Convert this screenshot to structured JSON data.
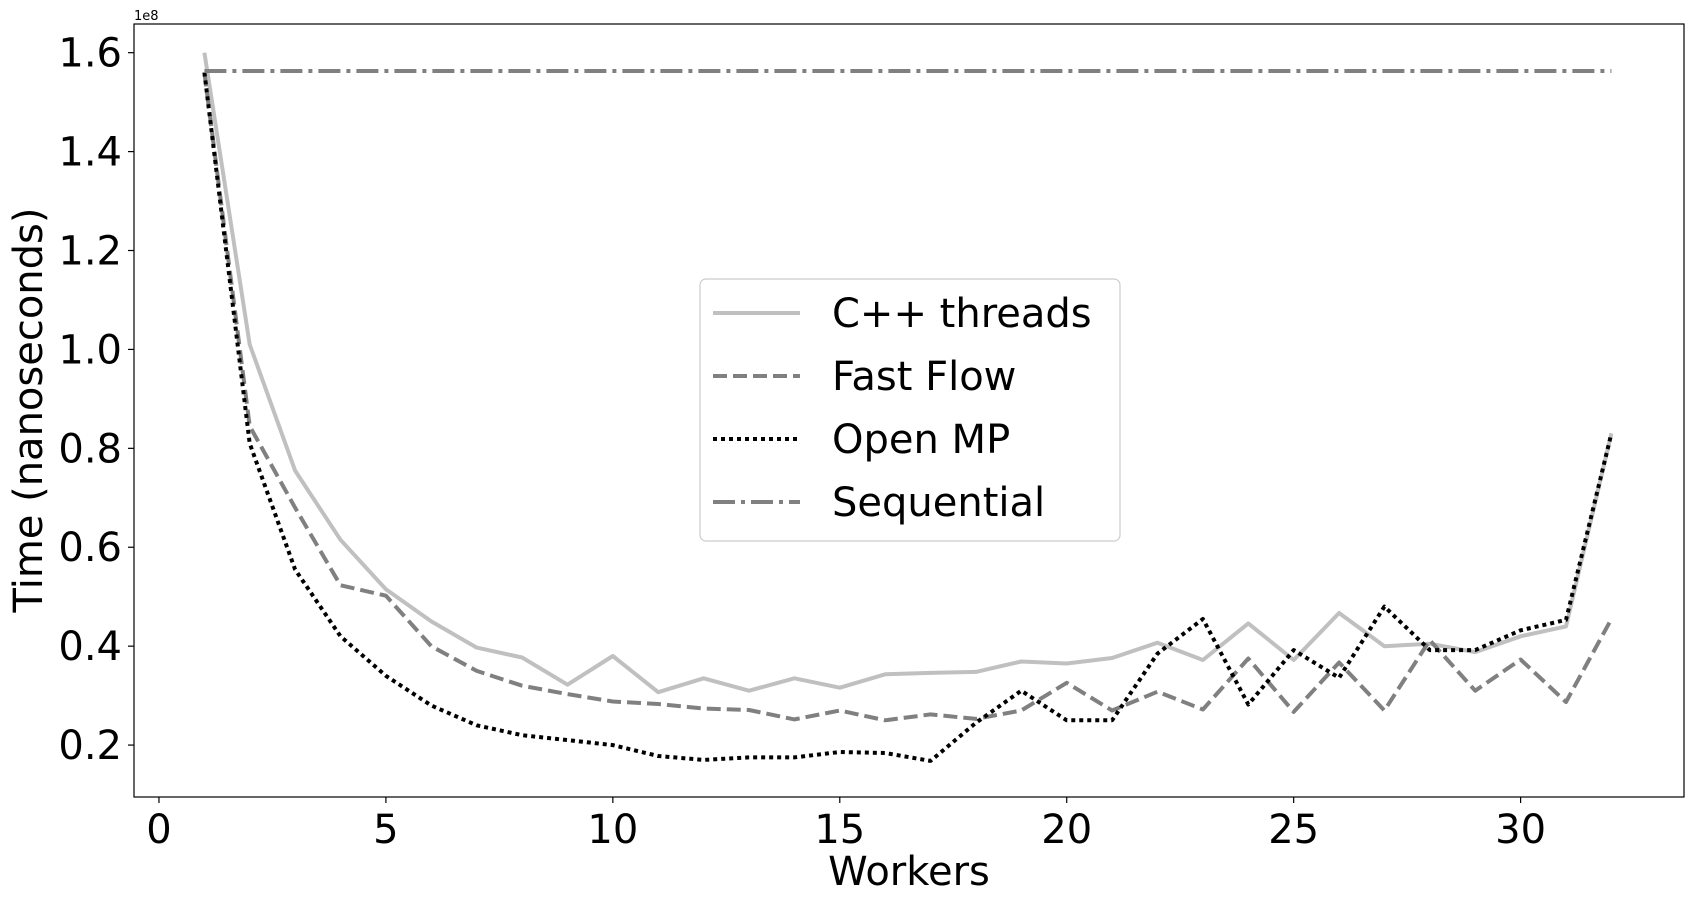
{
  "chart_data": {
    "type": "line",
    "xlabel": "Workers",
    "ylabel": "Time (nanoseconds)",
    "y_offset_label": "1e8",
    "xlim": [
      -0.55,
      33.6
    ],
    "ylim": [
      0.095,
      1.658
    ],
    "xticks": [
      0,
      5,
      10,
      15,
      20,
      25,
      30
    ],
    "yticks": [
      0.2,
      0.4,
      0.6,
      0.8,
      1.0,
      1.2,
      1.4,
      1.6
    ],
    "ytick_labels": [
      "0.2",
      "0.4",
      "0.6",
      "0.8",
      "1.0",
      "1.2",
      "1.4",
      "1.6"
    ],
    "grid": false,
    "legend_position": "center",
    "series": [
      {
        "name": "C++ threads",
        "color": "#c0c0c0",
        "style": "solid",
        "x": [
          1,
          2,
          3,
          4,
          5,
          6,
          7,
          8,
          9,
          10,
          11,
          12,
          13,
          14,
          15,
          16,
          17,
          18,
          19,
          20,
          21,
          22,
          23,
          24,
          25,
          26,
          27,
          28,
          29,
          30,
          31,
          32
        ],
        "y": [
          1.6,
          1.01,
          0.755,
          0.615,
          0.515,
          0.45,
          0.397,
          0.377,
          0.322,
          0.38,
          0.307,
          0.335,
          0.31,
          0.335,
          0.316,
          0.343,
          0.346,
          0.348,
          0.369,
          0.365,
          0.376,
          0.407,
          0.372,
          0.446,
          0.372,
          0.467,
          0.4,
          0.405,
          0.388,
          0.42,
          0.44,
          0.83
        ]
      },
      {
        "name": "Fast Flow",
        "color": "#808080",
        "style": "dashed",
        "x": [
          1,
          2,
          3,
          4,
          5,
          6,
          7,
          8,
          9,
          10,
          11,
          12,
          13,
          14,
          15,
          16,
          17,
          18,
          19,
          20,
          21,
          22,
          23,
          24,
          25,
          26,
          27,
          28,
          29,
          30,
          31,
          32
        ],
        "y": [
          1.56,
          0.845,
          0.68,
          0.523,
          0.502,
          0.4,
          0.35,
          0.32,
          0.303,
          0.288,
          0.283,
          0.274,
          0.271,
          0.252,
          0.27,
          0.25,
          0.262,
          0.253,
          0.27,
          0.326,
          0.27,
          0.308,
          0.272,
          0.375,
          0.267,
          0.367,
          0.27,
          0.412,
          0.31,
          0.373,
          0.287,
          0.455
        ]
      },
      {
        "name": "Open MP",
        "color": "#000000",
        "style": "dotted",
        "x": [
          1,
          2,
          3,
          4,
          5,
          6,
          7,
          8,
          9,
          10,
          11,
          12,
          13,
          14,
          15,
          16,
          17,
          18,
          19,
          20,
          21,
          22,
          23,
          24,
          25,
          26,
          27,
          28,
          29,
          30,
          31,
          32
        ],
        "y": [
          1.56,
          0.81,
          0.555,
          0.42,
          0.34,
          0.28,
          0.24,
          0.22,
          0.21,
          0.2,
          0.178,
          0.17,
          0.175,
          0.175,
          0.186,
          0.184,
          0.168,
          0.245,
          0.31,
          0.25,
          0.25,
          0.385,
          0.455,
          0.282,
          0.392,
          0.336,
          0.48,
          0.392,
          0.392,
          0.432,
          0.453,
          0.83
        ]
      },
      {
        "name": "Sequential",
        "color": "#808080",
        "style": "dashdot",
        "x": [
          1,
          32
        ],
        "y": [
          1.563,
          1.563
        ]
      }
    ]
  }
}
